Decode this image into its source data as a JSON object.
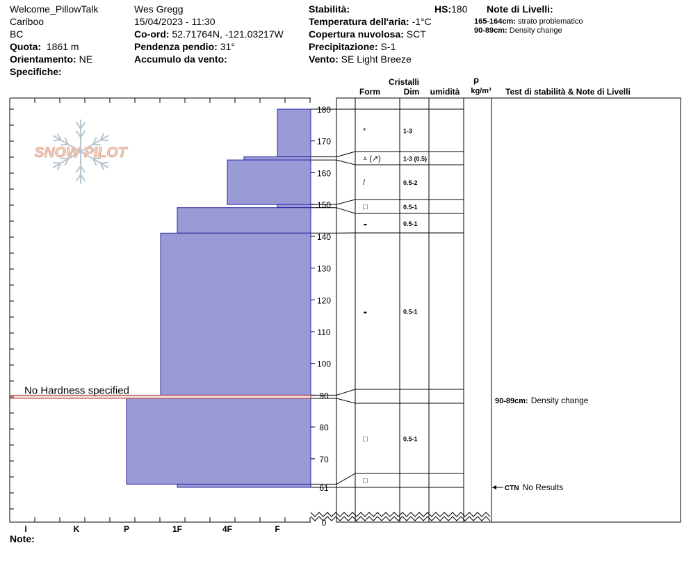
{
  "header": {
    "col1": {
      "site": "Welcome_PillowTalk",
      "range": "Cariboo",
      "state": "BC",
      "elevation_label": "Quota:",
      "elevation_value": "1861 m",
      "aspect_label": "Orientamento:",
      "aspect_value": "NE",
      "specifics_label": "Specifiche:"
    },
    "col2": {
      "observer": "Wes Gregg",
      "datetime": "15/04/2023 - 11:30",
      "coord_label": "Co-ord:",
      "coord_value": "52.71764N, -121.03217W",
      "slope_label": "Pendenza pendio:",
      "slope_value": "31°",
      "wind_loading_label": "Accumulo da vento:",
      "wind_loading_value": ""
    },
    "col3": {
      "stability_label": "Stabilità:",
      "stability_value": "",
      "hs_label": "HS:",
      "hs_value": "180",
      "air_temp_label": "Temperatura dell'aria:",
      "air_temp_value": "-1°C",
      "sky_label": "Copertura nuvolosa:",
      "sky_value": "SCT",
      "precip_label": "Precipitazione:",
      "precip_value": "S-1",
      "wind_label": "Vento:",
      "wind_value": "SE  Light Breeze"
    },
    "layer_notes": {
      "title": "Note di Livelli:",
      "items": [
        {
          "range": "165-164cm:",
          "text": "strato problematico"
        },
        {
          "range": "90-89cm:",
          "text": "Density change"
        }
      ]
    }
  },
  "columns": {
    "crystals": "Cristalli",
    "form": "Form",
    "size": "Dim",
    "moisture": "umidità",
    "density_symbol": "ρ",
    "density_unit": "kg/m³",
    "stability_tests": "Test di stabilità & Note di Livelli"
  },
  "hardness_axis": {
    "labels": [
      "I",
      "K",
      "P",
      "1F",
      "4F",
      "F"
    ]
  },
  "footer": {
    "notes_label": "Note:"
  },
  "watermark": "SNOW PILOT",
  "chart_data": {
    "type": "snow-profile",
    "hs": 180,
    "depth_ticks": [
      180,
      170,
      160,
      150,
      140,
      130,
      120,
      110,
      100,
      90,
      80,
      70,
      61,
      0
    ],
    "hardness_profile": [
      {
        "top": 180,
        "bottom": 165,
        "hardness": "F"
      },
      {
        "top": 165,
        "bottom": 164,
        "hardness": "F+"
      },
      {
        "top": 164,
        "bottom": 150,
        "hardness": "4F"
      },
      {
        "top": 150,
        "bottom": 149,
        "hardness": "F"
      },
      {
        "top": 149,
        "bottom": 141,
        "hardness": "1F"
      },
      {
        "top": 141,
        "bottom": 90,
        "hardness": "1F-"
      },
      {
        "top": 90,
        "bottom": 89,
        "hardness": "none"
      },
      {
        "top": 89,
        "bottom": 62,
        "hardness": "P"
      },
      {
        "top": 62,
        "bottom": 61,
        "hardness": "1F"
      }
    ],
    "no_hardness_label": "No Hardness specified",
    "layer_boundaries": [
      180,
      165,
      164,
      150,
      149,
      141,
      90,
      89,
      62,
      61
    ],
    "crystal_layers": [
      {
        "top": 180,
        "bottom": 165,
        "form": "*",
        "size": "1-3"
      },
      {
        "top": 165,
        "bottom": 164,
        "form": "⩡ (↗)",
        "size": "1-3 (0.5)"
      },
      {
        "top": 164,
        "bottom": 150,
        "form": "/",
        "size": "0.5-2"
      },
      {
        "top": 150,
        "bottom": 149,
        "form": "□",
        "size": "0.5-1"
      },
      {
        "top": 149,
        "bottom": 141,
        "form": "◒",
        "size": "0.5-1"
      },
      {
        "top": 141,
        "bottom": 90,
        "form": "◒",
        "size": "0.5-1"
      },
      {
        "top": 89,
        "bottom": 62,
        "form": "□",
        "size": "0.5-1"
      },
      {
        "top": 62,
        "bottom": 61,
        "form": "□",
        "size": ""
      }
    ],
    "layer_comments": [
      {
        "depth": 90,
        "range": "90-89cm:",
        "text": "Density change"
      }
    ],
    "stability_tests": [
      {
        "depth": 61,
        "test": "CTN",
        "result": "No Results"
      }
    ]
  }
}
